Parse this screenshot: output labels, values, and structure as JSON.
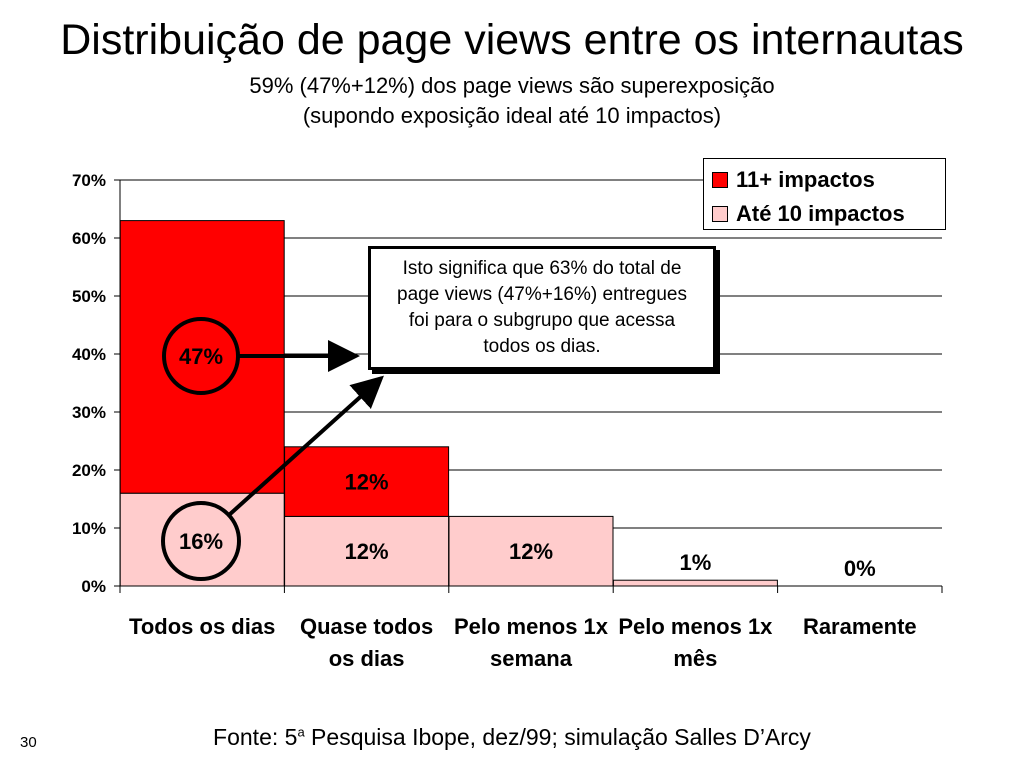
{
  "slide": {
    "title": "Distribuição de page views entre os internautas",
    "subtitle_line1": "59% (47%+12%) dos page views são superexposição",
    "subtitle_line2": "(supondo exposição ideal até 10 impactos)",
    "footer_prefix": "Fonte: 5",
    "footer_sup": "a",
    "footer_suffix": " Pesquisa Ibope, dez/99; simulação Salles D’Arcy",
    "slide_number": "30",
    "callout_text": "Isto significa que 63% do total de page views (47%+16%) entregues foi para o subgrupo que acessa todos os dias."
  },
  "colors": {
    "series_11plus": "#ff0000",
    "series_ate10": "#ffcccc",
    "gridline": "#000000"
  },
  "chart_data": {
    "type": "bar",
    "stacked": true,
    "categories": [
      "Todos os dias",
      "Quase todos os dias",
      "Pelo menos 1x semana",
      "Pelo menos 1x mês",
      "Raramente"
    ],
    "series": [
      {
        "name": "Até 10 impactos",
        "values": [
          16,
          12,
          12,
          1,
          0
        ],
        "labels": [
          "16%",
          "12%",
          "12%",
          "1%",
          "0%"
        ]
      },
      {
        "name": "11+ impactos",
        "values": [
          47,
          12,
          0,
          0,
          0
        ],
        "labels": [
          "47%",
          "12%",
          "",
          "",
          ""
        ]
      }
    ],
    "yticks": [
      "0%",
      "10%",
      "20%",
      "30%",
      "40%",
      "50%",
      "60%",
      "70%"
    ],
    "ylim": [
      0,
      70
    ],
    "grid": true,
    "legend_position": "top-right",
    "legend": [
      "11+ impactos",
      "Até 10 impactos"
    ]
  }
}
